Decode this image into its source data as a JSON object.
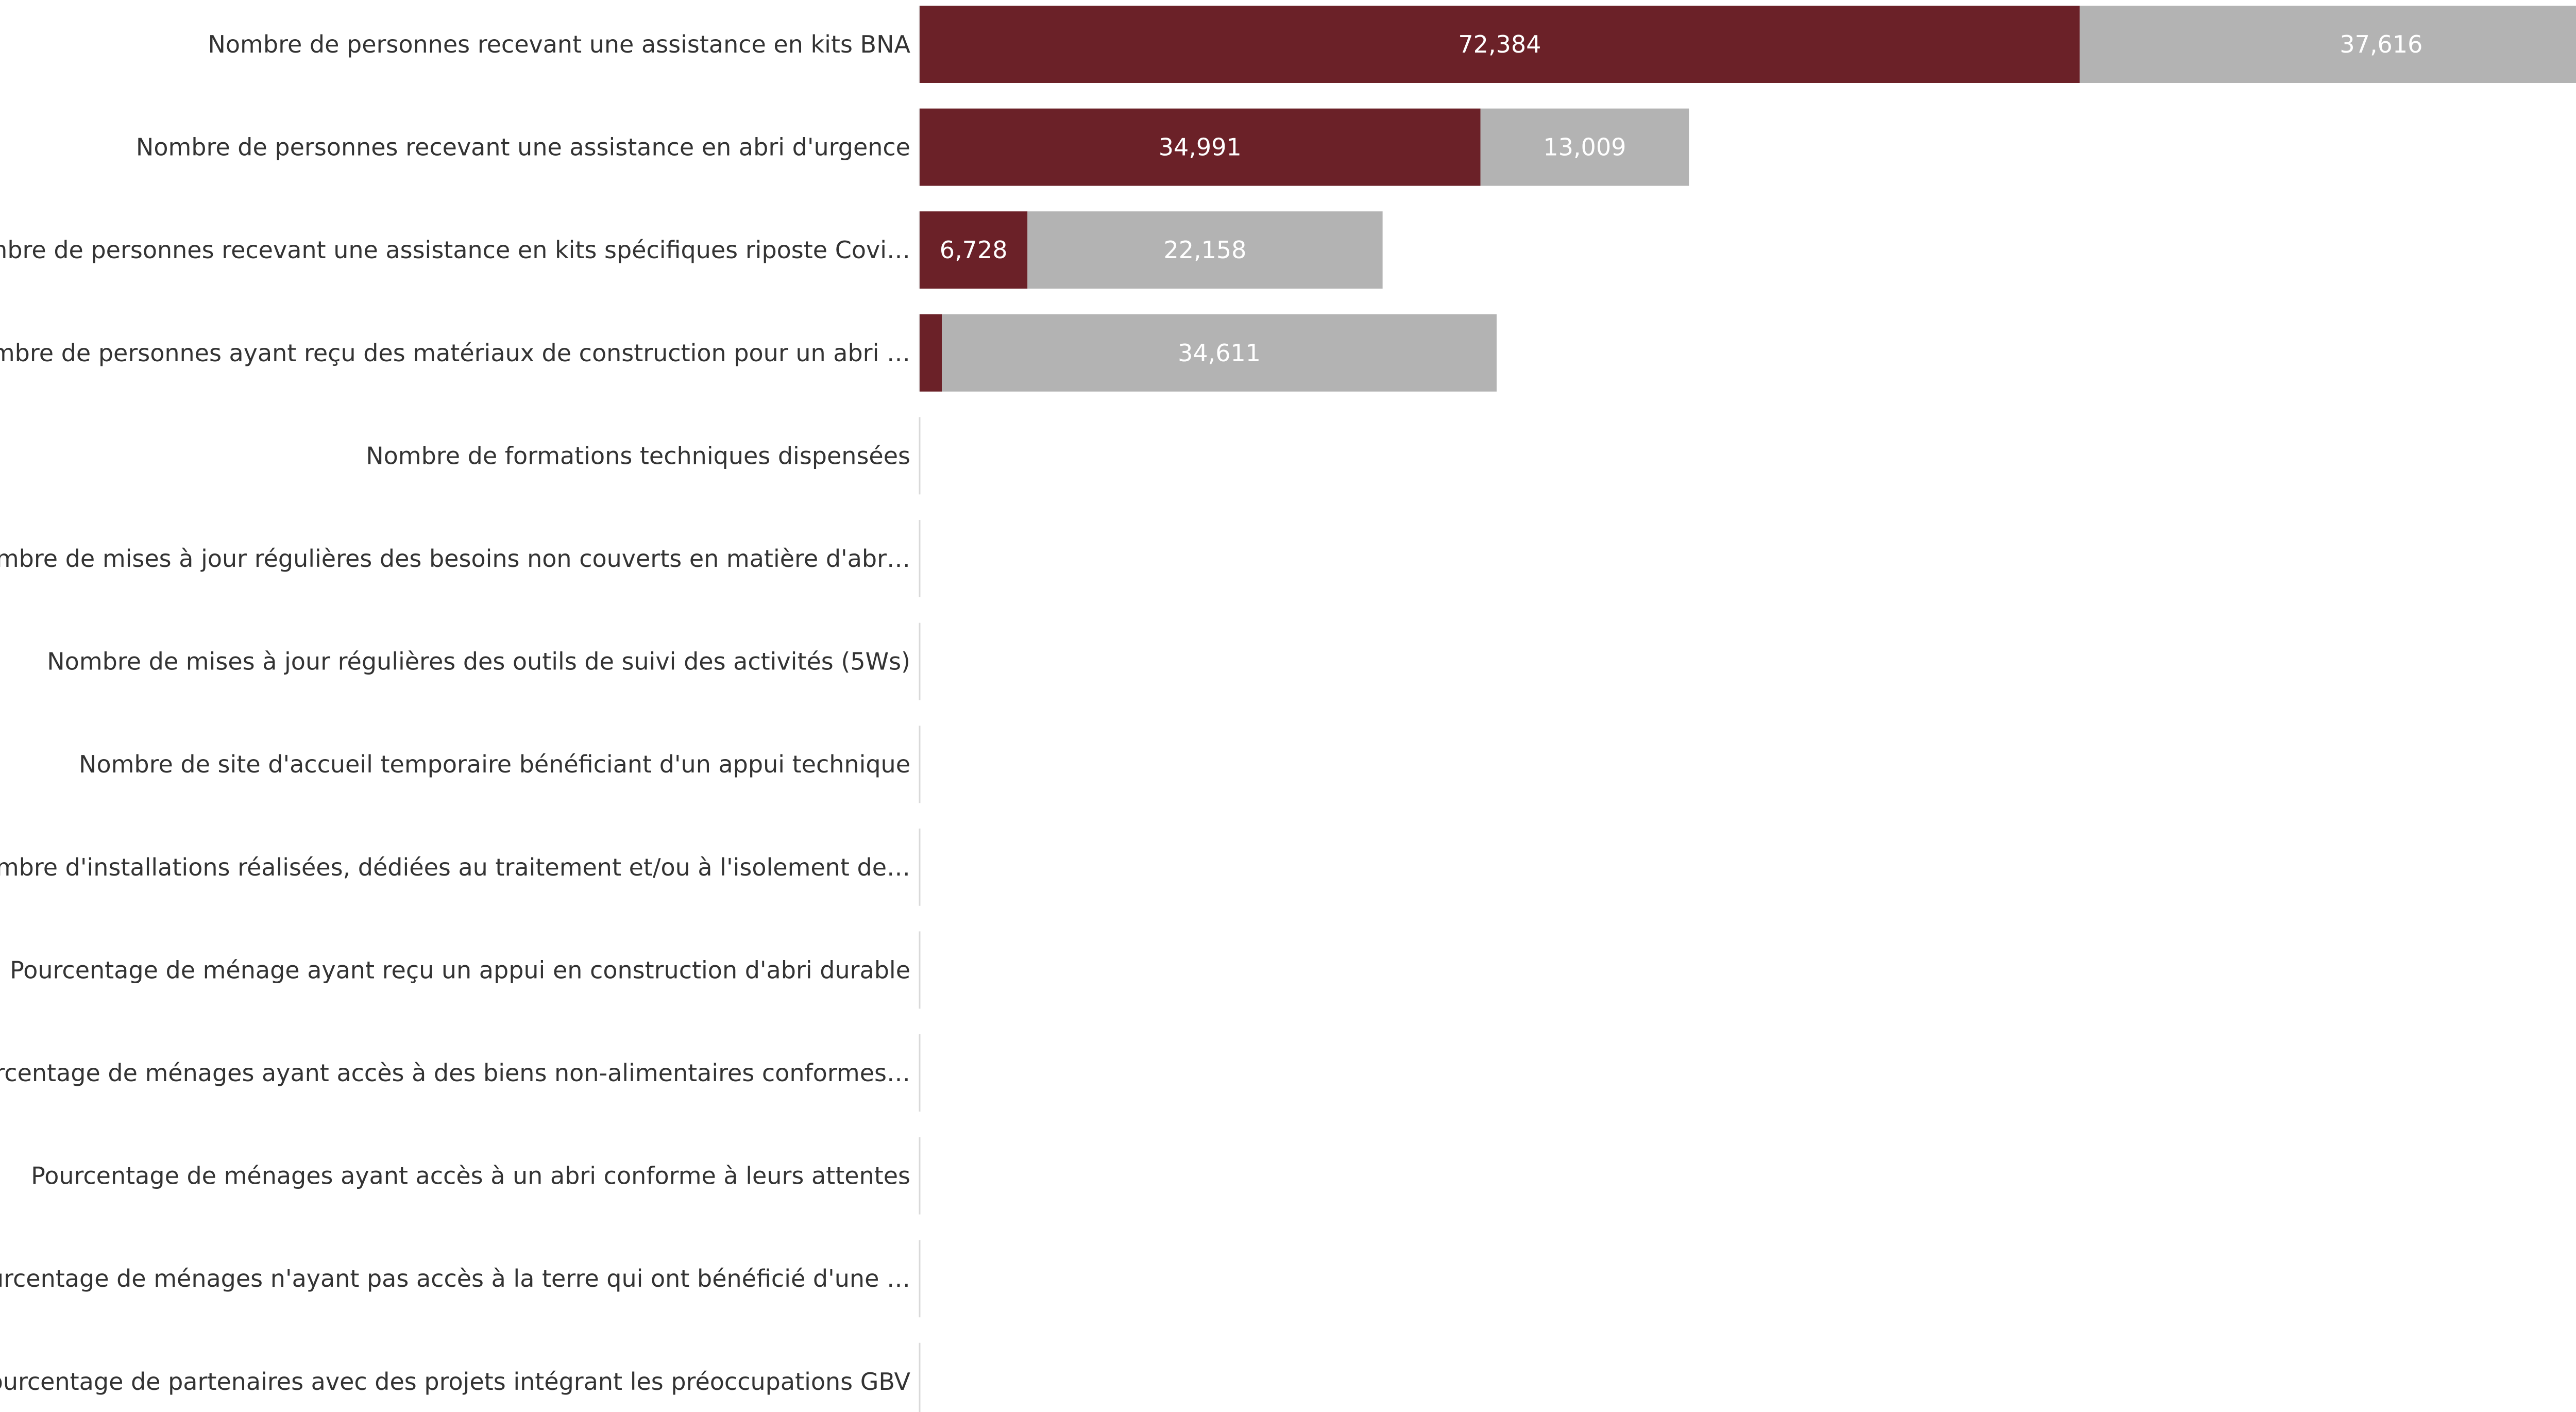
{
  "chart_data": {
    "type": "bar",
    "orientation": "horizontal",
    "stacked": true,
    "title": "",
    "xlabel": "",
    "ylabel": "",
    "grid": false,
    "legend": "none",
    "xlim": [
      0,
      110000
    ],
    "categories": [
      "Nombre de personnes recevant une assistance en kits BNA",
      "Nombre de personnes recevant une assistance en abri d'urgence",
      "Nombre de personnes recevant une assistance en kits spécifiques riposte Covi…",
      "Nombre de personnes ayant reçu des matériaux de construction pour un abri …",
      "Nombre de formations techniques dispensées",
      "Nombre de mises à jour régulières des besoins non couverts en matière d'abr…",
      "Nombre de mises à jour régulières des outils de suivi des activités (5Ws)",
      "Nombre de site d'accueil temporaire bénéficiant d'un appui technique",
      "Nombre d'installations réalisées, dédiées au traitement et/ou à l'isolement de…",
      "Pourcentage de ménage ayant reçu un appui en construction d'abri durable",
      "Pourcentage de ménages ayant accès à des biens non-alimentaires conformes…",
      "Pourcentage de ménages ayant accès à un abri conforme à leurs attentes",
      "Pourcentage de ménages n'ayant pas accès à la terre qui ont bénéficié d'une …",
      "Pourcentage de partenaires avec des projets intégrant les préoccupations GBV"
    ],
    "series": [
      {
        "color": "#6b2128",
        "values": [
          72384,
          34991,
          6728,
          1389,
          0,
          0,
          0,
          0,
          0,
          0,
          0,
          0,
          0,
          0
        ],
        "labels": [
          "72,384",
          "34,991",
          "6,728",
          "",
          "",
          "",
          "",
          "",
          "",
          "",
          "",
          "",
          "",
          ""
        ]
      },
      {
        "color": "#b3b3b3",
        "values": [
          37616,
          13009,
          22158,
          34611,
          0,
          0,
          0,
          0,
          0,
          0,
          0,
          0,
          0,
          0
        ],
        "labels": [
          "37,616",
          "13,009",
          "22,158",
          "34,611",
          "",
          "",
          "",
          "",
          "",
          "",
          "",
          "",
          "",
          ""
        ]
      }
    ]
  }
}
